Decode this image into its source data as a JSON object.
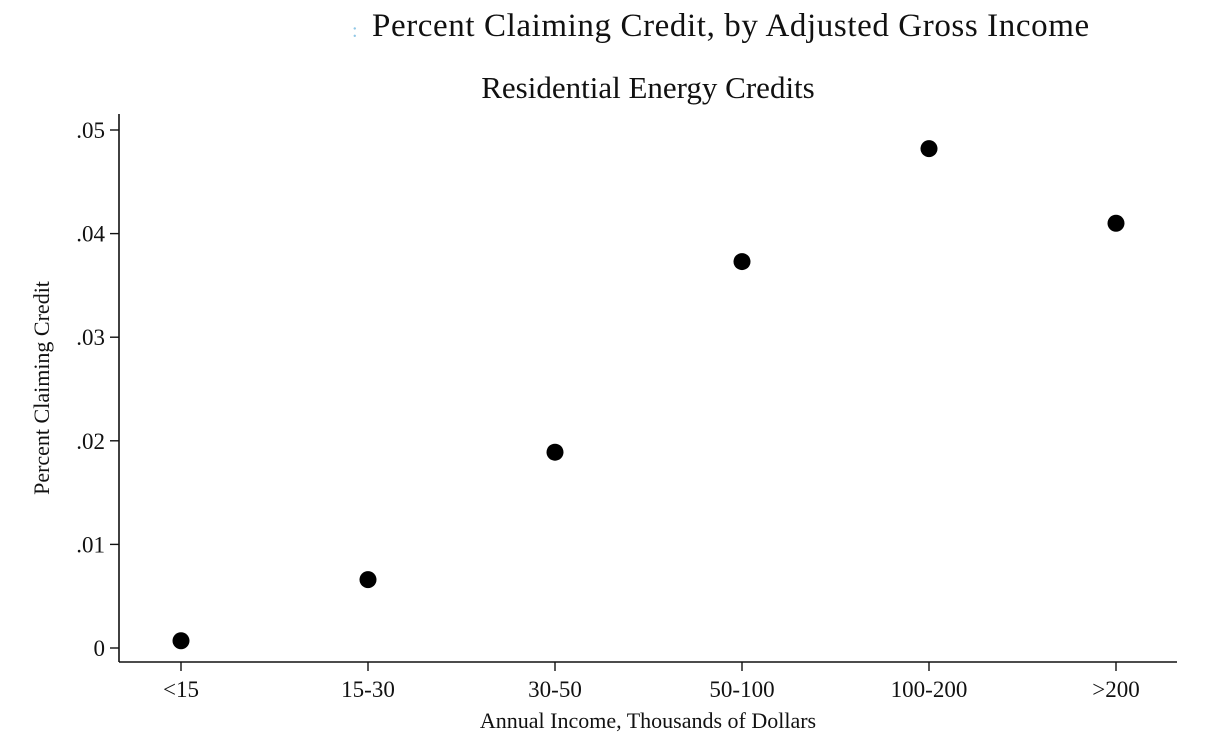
{
  "figure": {
    "caption": "Percent Claiming Credit, by Adjusted Gross Income"
  },
  "chart_data": {
    "type": "scatter",
    "title": "Residential Energy Credits",
    "xlabel": "Annual Income, Thousands of Dollars",
    "ylabel": "Percent Claiming Credit",
    "categories": [
      "<15",
      "15-30",
      "30-50",
      "50-100",
      "100-200",
      ">200"
    ],
    "values": [
      0.0007,
      0.0066,
      0.0189,
      0.0373,
      0.0482,
      0.041
    ],
    "ylim": [
      0,
      0.05
    ],
    "yticks": [
      0,
      0.01,
      0.02,
      0.03,
      0.04,
      0.05
    ],
    "ytick_labels": [
      "0",
      ".01",
      ".02",
      ".03",
      ".04",
      ".05"
    ],
    "grid": false,
    "marker_color": "#000000"
  }
}
